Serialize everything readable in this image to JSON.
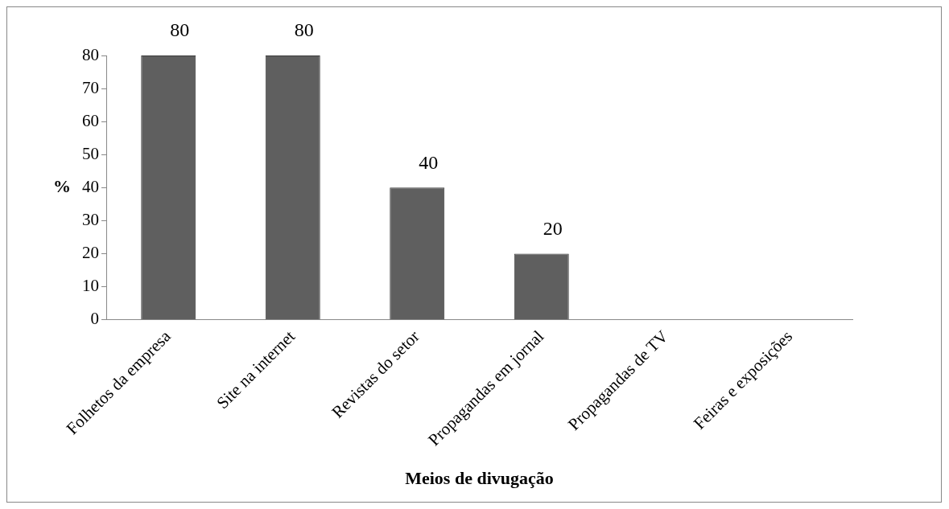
{
  "chart_data": {
    "type": "bar",
    "xlabel": "Meios de divugação",
    "ylabel": "%",
    "categories": [
      "Folhetos da empresa",
      "Site na internet",
      "Revistas do setor",
      "Propagandas em jornal",
      "Propagandas de TV",
      "Feiras e exposições"
    ],
    "values": [
      80,
      80,
      40,
      20,
      0,
      0
    ],
    "value_labels": [
      "80",
      "80",
      "40",
      "20",
      null,
      null
    ],
    "color": "#5f5f5f",
    "ylim": [
      0,
      80
    ],
    "yticks": [
      0,
      10,
      20,
      30,
      40,
      50,
      60,
      70,
      80
    ],
    "grid": false,
    "legend": false
  }
}
